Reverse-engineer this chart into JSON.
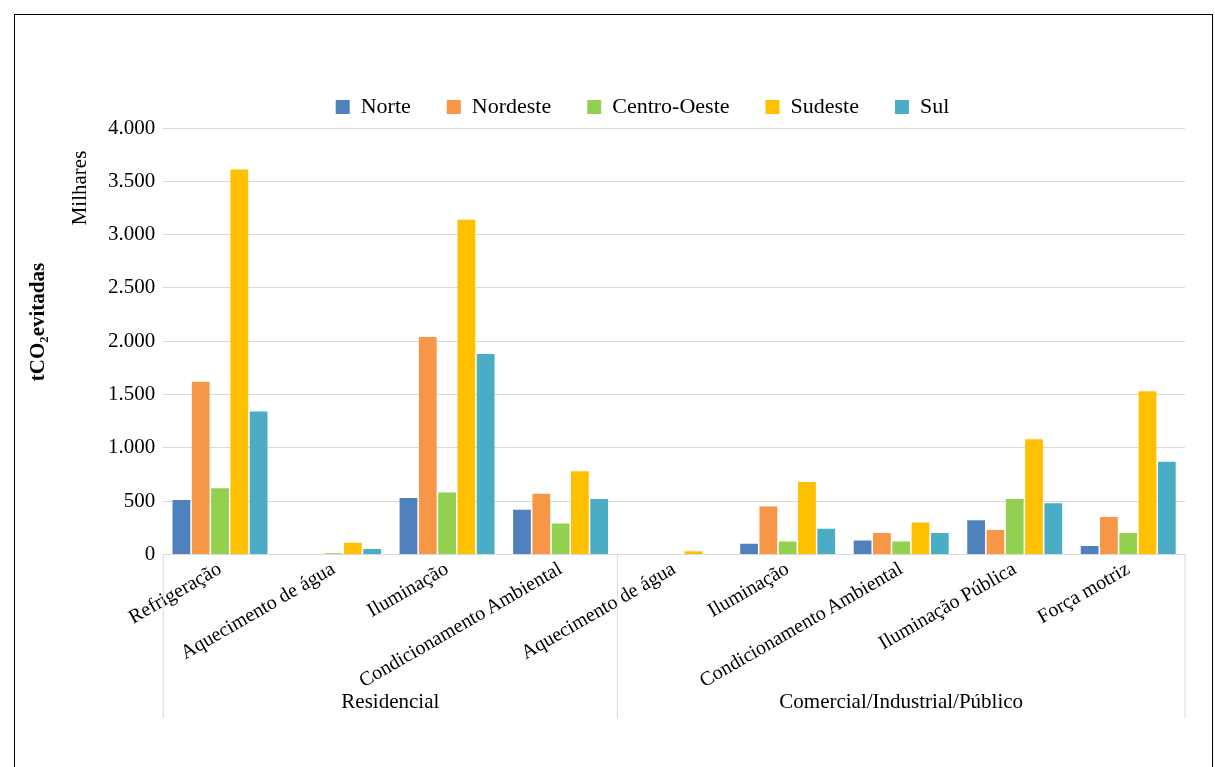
{
  "chart_data": {
    "type": "bar",
    "ylabel": "tCO₂evitadas",
    "categories": [
      "Refrigeração",
      "Aquecimento de água",
      "Iluminação",
      "Condicionamento Ambiental",
      "Aquecimento de água",
      "Iluminação",
      "Condicionamento Ambiental",
      "Iluminação Pública",
      "Força motriz"
    ],
    "series": [
      {
        "name": "Norte",
        "color": "#4f81bd",
        "values": [
          510,
          0,
          530,
          420,
          0,
          100,
          130,
          320,
          80
        ]
      },
      {
        "name": "Nordeste",
        "color": "#f79646",
        "values": [
          1620,
          0,
          2040,
          570,
          0,
          450,
          200,
          230,
          350
        ]
      },
      {
        "name": "Centro-Oeste",
        "color": "#92d050",
        "values": [
          620,
          10,
          580,
          290,
          0,
          120,
          120,
          520,
          200
        ]
      },
      {
        "name": "Sudeste",
        "color": "#ffc000",
        "values": [
          3610,
          110,
          3140,
          780,
          30,
          680,
          300,
          1080,
          1530
        ]
      },
      {
        "name": "Sul",
        "color": "#4bacc6",
        "values": [
          1340,
          50,
          1880,
          520,
          0,
          240,
          200,
          480,
          870
        ]
      }
    ],
    "ylim": [
      0,
      4000
    ],
    "yticks": [
      0,
      {
        "value": 500,
        "label": "500"
      },
      {
        "value": 1000,
        "label": "1.000"
      },
      {
        "value": 1500,
        "label": "1.500"
      },
      {
        "value": 2000,
        "label": "2.000"
      },
      {
        "value": 2500,
        "label": "2.500"
      },
      {
        "value": 3000,
        "label": "3.000"
      },
      {
        "value": 3500,
        "label": "3.500"
      },
      {
        "value": 4000,
        "label": "4.000"
      }
    ],
    "annotations": [
      "Milhares",
      "Residencial",
      "Comercial/Industrial/Público"
    ],
    "grid": "y",
    "legend": "top"
  }
}
